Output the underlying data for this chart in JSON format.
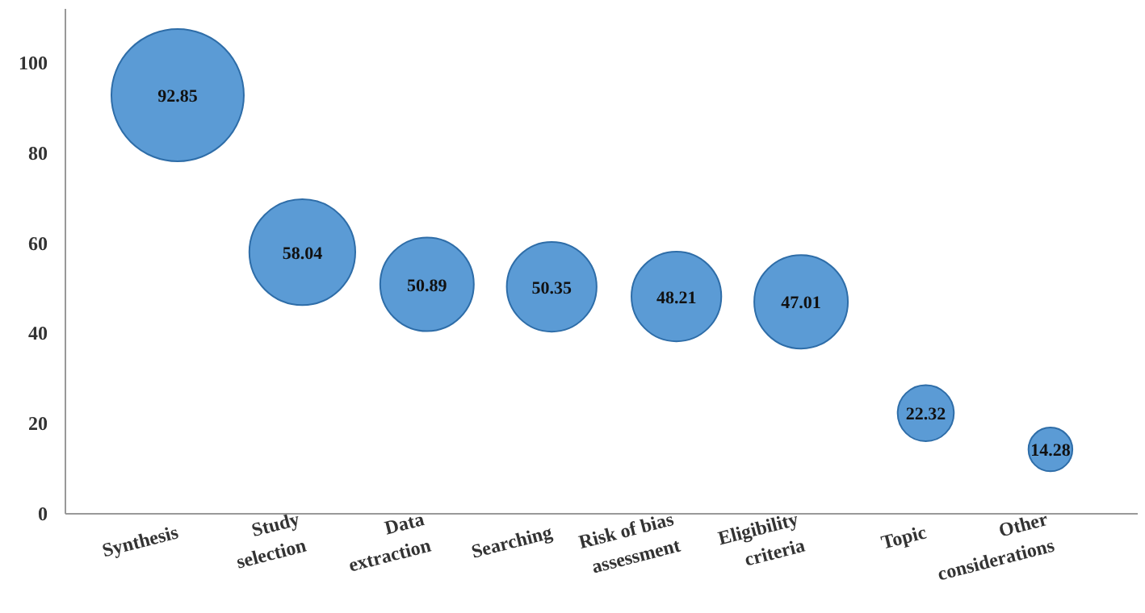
{
  "chart_data": {
    "type": "bubble",
    "categories": [
      "Synthesis",
      "Study\nselection",
      "Data\nextraction",
      "Searching",
      "Risk of bias\nassessment",
      "Eligibility\ncriteria",
      "Topic",
      "Other\nconsiderations"
    ],
    "values": [
      92.85,
      58.04,
      50.89,
      50.35,
      48.21,
      47.01,
      22.32,
      14.28
    ],
    "sizes": [
      1,
      0.64,
      0.5,
      0.46,
      0.46,
      0.5,
      0.18,
      0.11
    ],
    "color": "#5b9bd5",
    "data_labels": true,
    "ylim": [
      0,
      112
    ],
    "yticks": [
      0,
      20,
      40,
      60,
      80,
      100
    ],
    "grid": false
  }
}
